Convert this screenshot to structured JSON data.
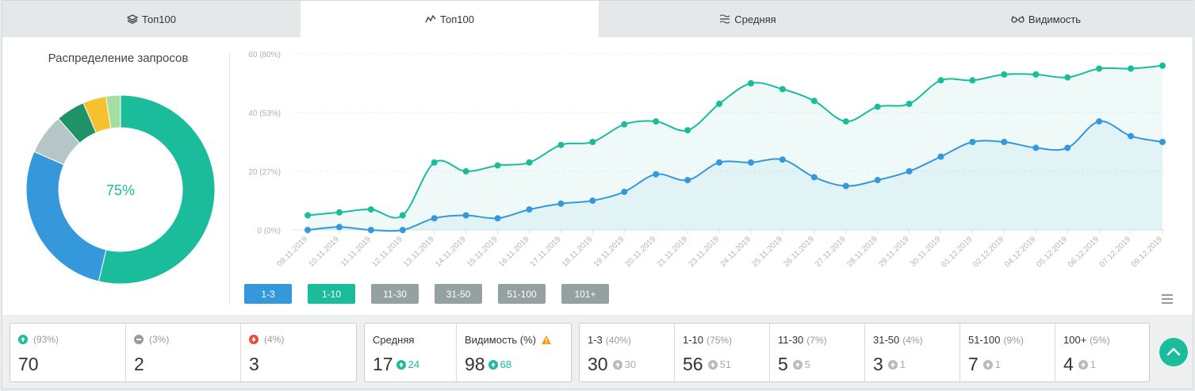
{
  "tabs": [
    {
      "label": "Топ100",
      "icon": "layers-icon",
      "active": false
    },
    {
      "label": "Топ100",
      "icon": "line-chart-icon",
      "active": true
    },
    {
      "label": "Средняя",
      "icon": "average-icon",
      "active": false
    },
    {
      "label": "Видимость",
      "icon": "glasses-icon",
      "active": false
    }
  ],
  "donut": {
    "title": "Распределение запросов",
    "center_label": "75%",
    "segments": [
      {
        "range": "1-10",
        "percent": 54,
        "color": "#1abc9c"
      },
      {
        "range": "1-3",
        "percent": 28,
        "color": "#3498db"
      },
      {
        "range": "11-30",
        "percent": 7,
        "color": "#b6c5c5"
      },
      {
        "range": "31-50",
        "percent": 5,
        "color": "#1f9268"
      },
      {
        "range": "51-100",
        "percent": 4,
        "color": "#f6c02f"
      },
      {
        "range": "101+",
        "percent": 2.5,
        "color": "#a4dea0"
      }
    ]
  },
  "chart_data": {
    "type": "area",
    "x": [
      "09.11.2019",
      "10.11.2019",
      "11.11.2019",
      "12.11.2019",
      "13.11.2019",
      "14.11.2019",
      "15.11.2019",
      "16.11.2019",
      "17.11.2019",
      "18.11.2019",
      "19.11.2019",
      "20.11.2019",
      "21.11.2019",
      "23.11.2019",
      "24.11.2019",
      "25.11.2019",
      "26.11.2019",
      "27.11.2019",
      "28.11.2019",
      "29.11.2019",
      "30.11.2019",
      "01.12.2019",
      "02.12.2019",
      "04.12.2019",
      "05.12.2019",
      "06.12.2019",
      "07.12.2019",
      "09.12.2019"
    ],
    "y_ticks": [
      {
        "value": 0,
        "label": "0 (0%)"
      },
      {
        "value": 20,
        "label": "20 (27%)"
      },
      {
        "value": 40,
        "label": "40 (53%)"
      },
      {
        "value": 60,
        "label": "60 (80%)"
      }
    ],
    "ylim": [
      0,
      60
    ],
    "series": [
      {
        "name": "1-10",
        "color": "#1abc9c",
        "values": [
          5,
          6,
          7,
          5,
          23,
          20,
          22,
          23,
          29,
          30,
          36,
          37,
          34,
          43,
          50,
          48,
          44,
          37,
          42,
          43,
          51,
          51,
          53,
          53,
          52,
          55,
          55,
          56
        ]
      },
      {
        "name": "1-3",
        "color": "#3498db",
        "values": [
          0,
          1,
          0,
          0,
          4,
          5,
          4,
          7,
          9,
          10,
          13,
          19,
          17,
          23,
          23,
          24,
          18,
          15,
          17,
          20,
          25,
          30,
          30,
          28,
          28,
          37,
          32,
          30
        ]
      }
    ]
  },
  "range_buttons": [
    {
      "label": "1-3",
      "color": "#3498db"
    },
    {
      "label": "1-10",
      "color": "#1abc9c"
    },
    {
      "label": "11-30",
      "color": "#95a0a0"
    },
    {
      "label": "31-50",
      "color": "#95a0a0"
    },
    {
      "label": "51-100",
      "color": "#95a0a0"
    },
    {
      "label": "101+",
      "color": "#95a0a0"
    }
  ],
  "stats": {
    "changes": [
      {
        "icon": "arrow-up-icon",
        "color": "#1abc9c",
        "pct": "(93%)",
        "value": "70"
      },
      {
        "icon": "minus-icon",
        "color": "#9a9a9a",
        "pct": "(3%)",
        "value": "2"
      },
      {
        "icon": "arrow-down-icon",
        "color": "#e74c3c",
        "pct": "(4%)",
        "value": "3"
      }
    ],
    "average": {
      "label": "Средняя",
      "value": "17",
      "delta": "24"
    },
    "visibility": {
      "label": "Видимость (%)",
      "value": "98",
      "delta": "68"
    },
    "ranges": [
      {
        "label": "1-3",
        "pct": "(40%)",
        "value": "30",
        "delta": "30"
      },
      {
        "label": "1-10",
        "pct": "(75%)",
        "value": "56",
        "delta": "51"
      },
      {
        "label": "11-30",
        "pct": "(7%)",
        "value": "5",
        "delta": "5"
      },
      {
        "label": "31-50",
        "pct": "(4%)",
        "value": "3",
        "delta": "1"
      },
      {
        "label": "51-100",
        "pct": "(9%)",
        "value": "7",
        "delta": "1"
      },
      {
        "label": "100+",
        "pct": "(5%)",
        "value": "4",
        "delta": "1"
      }
    ]
  },
  "colors": {
    "accent": "#1abc9c",
    "blue": "#3498db",
    "gray_delta": "#b0b5b5",
    "warning": "#f39c12"
  }
}
